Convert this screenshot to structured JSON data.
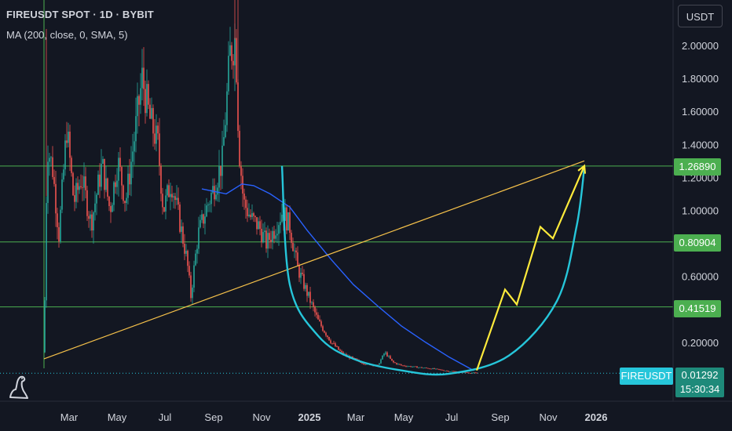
{
  "header": {
    "title": "FIREUSDT SPOT · 1D · BYBIT",
    "indicator": "MA (200, close, 0, SMA, 5)"
  },
  "currency_label": "USDT",
  "price_levels": [
    "1.26890",
    "0.80904",
    "0.41519"
  ],
  "symbol_tag": "FIREUSDT",
  "last_price": "0.01292",
  "countdown": "15:30:34",
  "colors": {
    "background": "#131722",
    "up": "#26a69a",
    "down": "#ef5350",
    "ma": "#2962ff",
    "level_line": "#4caf50",
    "trendline": "#f5c14a",
    "cup": "#26c6da",
    "projection": "#ffeb3b"
  },
  "chart_data": {
    "type": "candlestick",
    "title": "FIREUSDT SPOT · 1D · BYBIT",
    "ylim": [
      0,
      2.2
    ],
    "y_ticks": [
      "2.00000",
      "1.80000",
      "1.60000",
      "1.40000",
      "1.20000",
      "1.00000",
      "0.60000",
      "0.20000"
    ],
    "x_ticks": [
      "Mar",
      "May",
      "Jul",
      "Sep",
      "Nov",
      "2025",
      "Mar",
      "May",
      "Jul",
      "Sep",
      "Nov",
      "2026"
    ],
    "grid": false,
    "price_path": [
      [
        "2024-02-01",
        0.14
      ],
      [
        "2024-02-05",
        1.4
      ],
      [
        "2024-02-12",
        1.25
      ],
      [
        "2024-02-20",
        0.85
      ],
      [
        "2024-03-01",
        1.5
      ],
      [
        "2024-03-10",
        1.05
      ],
      [
        "2024-03-20",
        1.2
      ],
      [
        "2024-04-01",
        0.92
      ],
      [
        "2024-04-15",
        1.28
      ],
      [
        "2024-04-25",
        1.0
      ],
      [
        "2024-05-05",
        1.3
      ],
      [
        "2024-05-15",
        1.05
      ],
      [
        "2024-05-25",
        1.4
      ],
      [
        "2024-06-05",
        1.8
      ],
      [
        "2024-06-15",
        1.55
      ],
      [
        "2024-06-25",
        1.4
      ],
      [
        "2024-07-02",
        1.0
      ],
      [
        "2024-07-12",
        1.18
      ],
      [
        "2024-07-22",
        0.95
      ],
      [
        "2024-08-01",
        0.7
      ],
      [
        "2024-08-06",
        0.48
      ],
      [
        "2024-08-15",
        0.85
      ],
      [
        "2024-08-25",
        1.0
      ],
      [
        "2024-09-05",
        1.15
      ],
      [
        "2024-09-15",
        1.3
      ],
      [
        "2024-09-25",
        1.95
      ],
      [
        "2024-10-02",
        2.05
      ],
      [
        "2024-10-06",
        1.4
      ],
      [
        "2024-10-12",
        1.05
      ],
      [
        "2024-10-22",
        0.95
      ],
      [
        "2024-11-01",
        0.9
      ],
      [
        "2024-11-10",
        0.8
      ],
      [
        "2024-11-20",
        0.88
      ],
      [
        "2024-12-01",
        1.0
      ],
      [
        "2024-12-10",
        0.9
      ],
      [
        "2024-12-20",
        0.65
      ],
      [
        "2025-01-01",
        0.5
      ],
      [
        "2025-01-15",
        0.33
      ],
      [
        "2025-02-01",
        0.2
      ],
      [
        "2025-02-15",
        0.13
      ],
      [
        "2025-03-01",
        0.1
      ],
      [
        "2025-03-15",
        0.07
      ],
      [
        "2025-04-01",
        0.06
      ],
      [
        "2025-04-10",
        0.14
      ],
      [
        "2025-04-20",
        0.08
      ],
      [
        "2025-05-01",
        0.06
      ],
      [
        "2025-05-20",
        0.05
      ],
      [
        "2025-06-10",
        0.04
      ],
      [
        "2025-07-01",
        0.025
      ],
      [
        "2025-07-20",
        0.018
      ],
      [
        "2025-08-05",
        0.013
      ]
    ],
    "ma200": [
      [
        "2024-08-20",
        1.13
      ],
      [
        "2024-09-20",
        1.1
      ],
      [
        "2024-10-10",
        1.16
      ],
      [
        "2024-10-25",
        1.15
      ],
      [
        "2024-11-15",
        1.1
      ],
      [
        "2024-12-10",
        1.02
      ],
      [
        "2025-01-01",
        0.88
      ],
      [
        "2025-02-01",
        0.7
      ],
      [
        "2025-03-01",
        0.55
      ],
      [
        "2025-04-01",
        0.42
      ],
      [
        "2025-05-01",
        0.3
      ],
      [
        "2025-06-01",
        0.2
      ],
      [
        "2025-07-01",
        0.11
      ],
      [
        "2025-08-01",
        0.03
      ]
    ],
    "horizontal_levels": [
      1.2689,
      0.80904,
      0.41519
    ],
    "trendline": [
      [
        "2024-02-01",
        0.1
      ],
      [
        "2025-12-20",
        1.3
      ]
    ],
    "cup_curve": [
      [
        "2024-11-30",
        1.27
      ],
      [
        "2024-12-10",
        0.55
      ],
      [
        "2025-01-15",
        0.24
      ],
      [
        "2025-03-01",
        0.1
      ],
      [
        "2025-05-01",
        0.03
      ],
      [
        "2025-07-01",
        0.01
      ],
      [
        "2025-09-15",
        0.12
      ],
      [
        "2025-11-15",
        0.45
      ],
      [
        "2025-12-10",
        0.9
      ],
      [
        "2025-12-20",
        1.26
      ]
    ],
    "projection": [
      [
        "2025-08-05",
        0.03
      ],
      [
        "2025-09-10",
        0.52
      ],
      [
        "2025-09-25",
        0.43
      ],
      [
        "2025-10-25",
        0.9
      ],
      [
        "2025-11-10",
        0.83
      ],
      [
        "2025-12-20",
        1.27
      ]
    ],
    "last_price": 0.01292
  }
}
